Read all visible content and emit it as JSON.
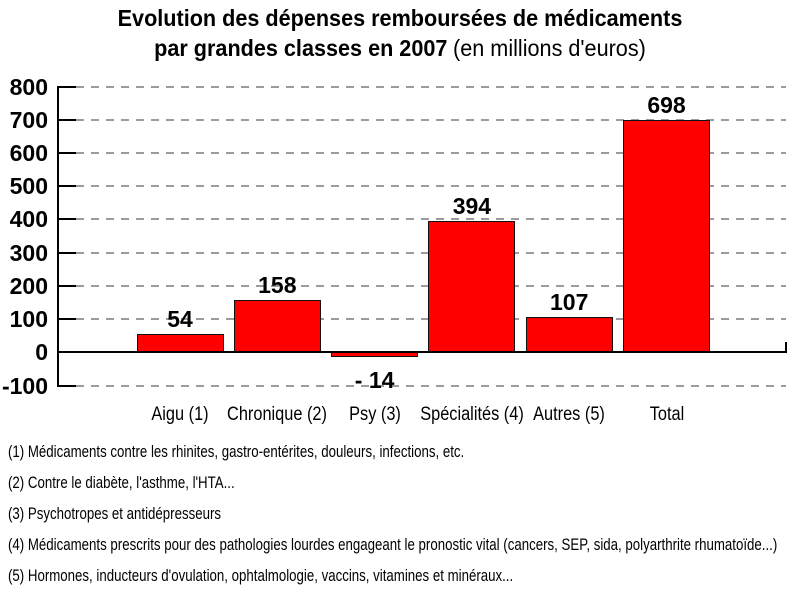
{
  "title": {
    "line1": "Evolution des dépenses remboursées de médicaments",
    "line2_bold": "par grandes classes en 2007",
    "line2_unit": "(en millions d'euros)"
  },
  "chart_data": {
    "type": "bar",
    "title": "Evolution des dépenses remboursées de médicaments par grandes classes en 2007 (en millions d'euros)",
    "categories": [
      "Aigu (1)",
      "Chronique (2)",
      "Psy (3)",
      "Spécialités (4)",
      "Autres (5)",
      "Total"
    ],
    "values": [
      54,
      158,
      -14,
      394,
      107,
      698
    ],
    "value_labels": [
      "54",
      "158",
      "- 14",
      "394",
      "107",
      "698"
    ],
    "xlabel": "",
    "ylabel": "",
    "ylim": [
      -100,
      800
    ],
    "yticks": [
      800,
      700,
      600,
      500,
      400,
      300,
      200,
      100,
      0,
      -100
    ],
    "grid": "dashed horizontal gridlines, solid zero baseline",
    "legend": null,
    "bar_color": "#fe0000",
    "bar_border_color": "#111111"
  },
  "footnotes": [
    "(1) Médicaments contre les rhinites, gastro-entérites, douleurs, infections, etc.",
    "(2) Contre le diabète, l'asthme, l'HTA...",
    "(3) Psychotropes et antidépresseurs",
    "(4) Médicaments prescrits pour des pathologies lourdes engageant le pronostic vital (cancers, SEP, sida, polyarthrite rhumatoïde...)",
    "(5) Hormones, inducteurs d'ovulation, ophtalmologie, vaccins, vitamines et minéraux..."
  ],
  "colors": {
    "background": "#ffffff",
    "bar": "#fe0000",
    "bar_border": "#111111",
    "grid": "#9c9c9c",
    "axis": "#000000",
    "text": "#000000"
  }
}
